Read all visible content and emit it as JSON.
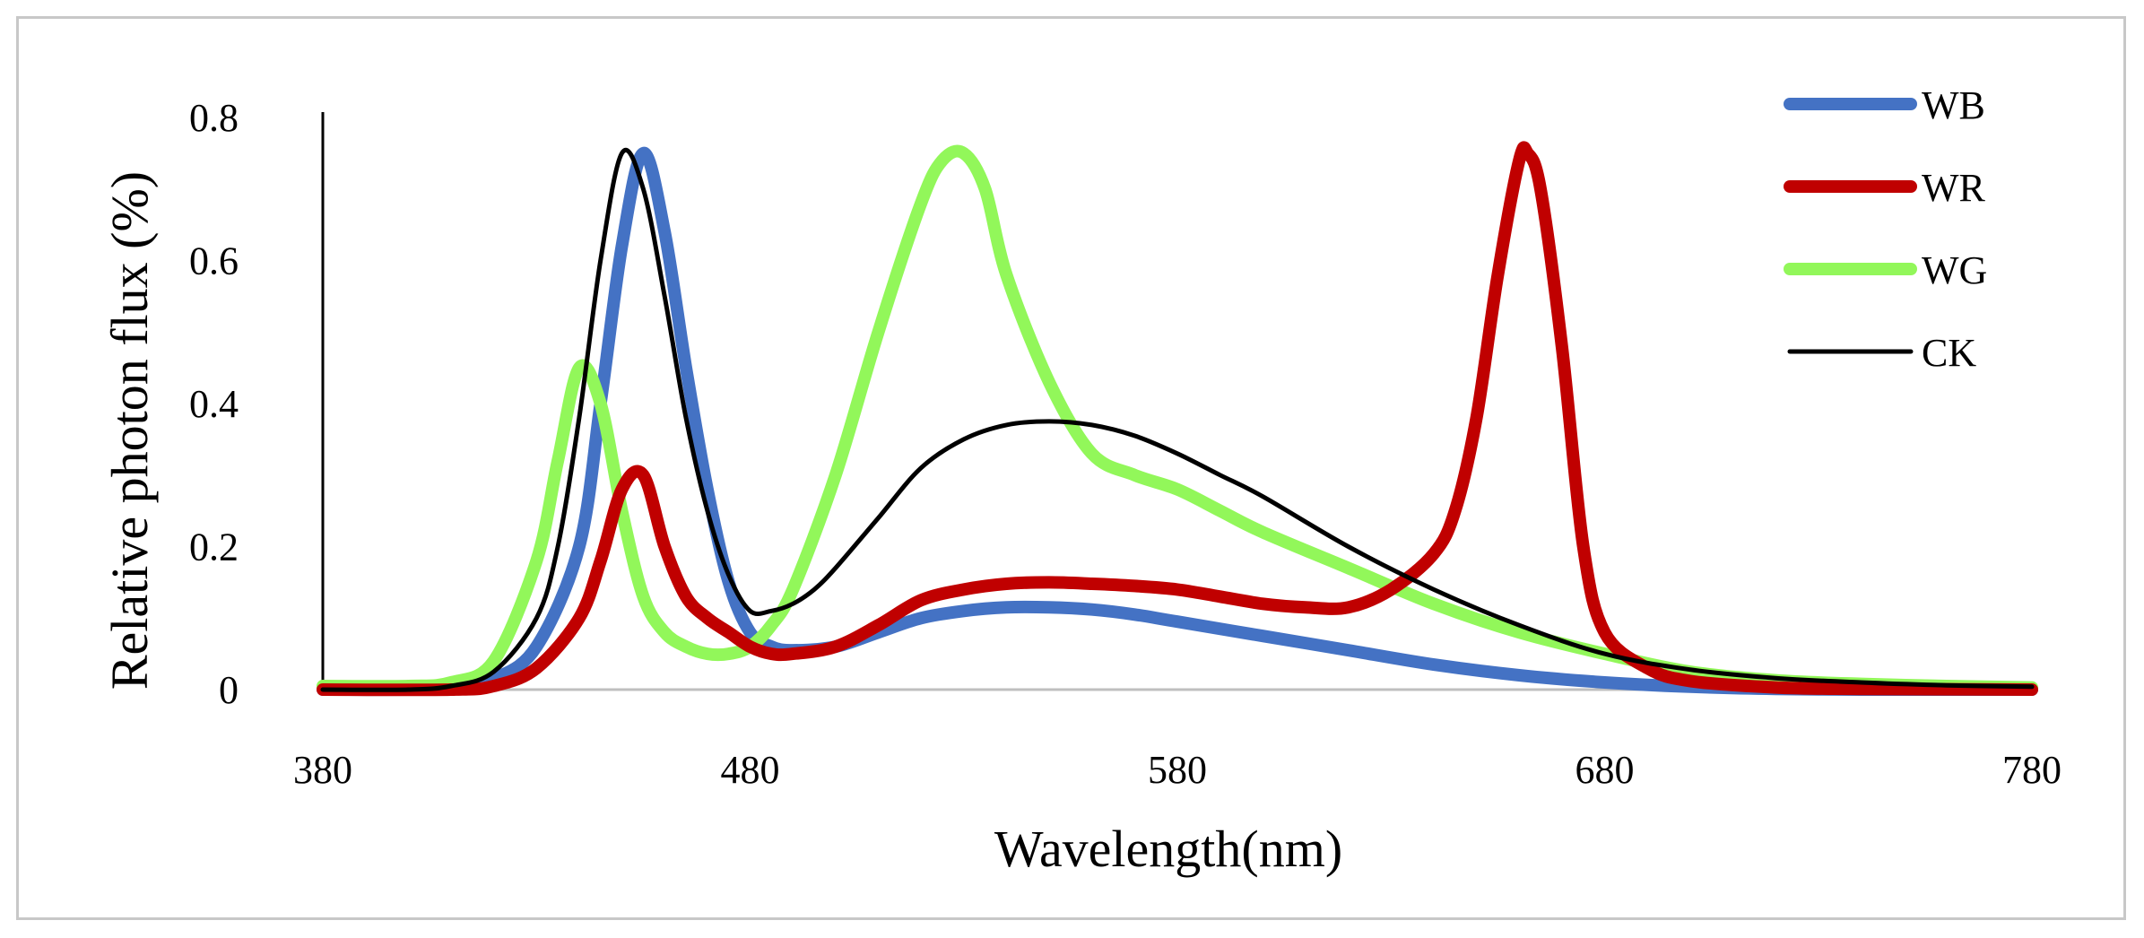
{
  "chart_data": {
    "type": "line",
    "title": "",
    "xlabel": "Wavelength(nm)",
    "ylabel": "Relative photon flux (%)",
    "xlim": [
      380,
      780
    ],
    "ylim": [
      0,
      0.8
    ],
    "xticks": [
      380,
      480,
      580,
      680,
      780
    ],
    "xtick_labels": [
      "380",
      "480",
      "580",
      "680",
      "780"
    ],
    "yticks": [
      0,
      0.2,
      0.4,
      0.6,
      0.8
    ],
    "ytick_labels": [
      "0",
      "0.2",
      "0.4",
      "0.6",
      "0.8"
    ],
    "grid": false,
    "legend": "top-right",
    "series": [
      {
        "name": "WB",
        "color": "#4472C4",
        "x": [
          380,
          400,
          410,
          420,
          430,
          440,
          445,
          450,
          455,
          460,
          465,
          470,
          475,
          480,
          485,
          490,
          500,
          510,
          520,
          530,
          540,
          550,
          560,
          570,
          580,
          600,
          620,
          640,
          660,
          680,
          700,
          720,
          740,
          760,
          780
        ],
        "y": [
          0,
          0,
          0.002,
          0.015,
          0.06,
          0.2,
          0.4,
          0.62,
          0.75,
          0.64,
          0.45,
          0.28,
          0.15,
          0.08,
          0.06,
          0.055,
          0.06,
          0.08,
          0.1,
          0.11,
          0.115,
          0.115,
          0.112,
          0.105,
          0.095,
          0.075,
          0.055,
          0.035,
          0.02,
          0.01,
          0.004,
          0.001,
          0,
          0,
          0
        ]
      },
      {
        "name": "WR",
        "color": "#C00000",
        "x": [
          380,
          410,
          420,
          430,
          440,
          445,
          450,
          455,
          460,
          465,
          470,
          475,
          480,
          485,
          490,
          500,
          510,
          520,
          530,
          540,
          550,
          560,
          570,
          580,
          590,
          600,
          610,
          620,
          630,
          640,
          645,
          650,
          655,
          660,
          662,
          665,
          670,
          675,
          680,
          690,
          700,
          720,
          740,
          780
        ],
        "y": [
          0,
          0,
          0.005,
          0.03,
          0.1,
          0.18,
          0.28,
          0.3,
          0.2,
          0.13,
          0.1,
          0.08,
          0.06,
          0.05,
          0.05,
          0.06,
          0.09,
          0.125,
          0.14,
          0.148,
          0.15,
          0.148,
          0.145,
          0.14,
          0.13,
          0.12,
          0.115,
          0.115,
          0.14,
          0.19,
          0.25,
          0.38,
          0.58,
          0.74,
          0.75,
          0.7,
          0.48,
          0.2,
          0.08,
          0.03,
          0.012,
          0.003,
          0.001,
          0
        ]
      },
      {
        "name": "WG",
        "color": "#92F75A",
        "x": [
          380,
          400,
          410,
          420,
          430,
          435,
          440,
          445,
          450,
          455,
          460,
          465,
          470,
          475,
          480,
          485,
          490,
          500,
          510,
          520,
          525,
          530,
          535,
          540,
          550,
          560,
          570,
          580,
          590,
          600,
          620,
          640,
          660,
          680,
          700,
          720,
          740,
          760,
          780
        ],
        "y": [
          0.005,
          0.005,
          0.01,
          0.04,
          0.18,
          0.32,
          0.45,
          0.4,
          0.25,
          0.13,
          0.08,
          0.06,
          0.05,
          0.05,
          0.06,
          0.09,
          0.14,
          0.3,
          0.5,
          0.68,
          0.74,
          0.75,
          0.7,
          0.58,
          0.43,
          0.33,
          0.3,
          0.28,
          0.25,
          0.22,
          0.17,
          0.12,
          0.08,
          0.05,
          0.025,
          0.013,
          0.008,
          0.005,
          0.003
        ]
      },
      {
        "name": "CK",
        "color": "#000000",
        "x": [
          380,
          400,
          410,
          420,
          430,
          435,
          440,
          445,
          450,
          455,
          460,
          465,
          470,
          475,
          480,
          485,
          490,
          495,
          500,
          510,
          520,
          530,
          540,
          550,
          560,
          570,
          580,
          590,
          600,
          620,
          640,
          660,
          680,
          700,
          720,
          740,
          760,
          780
        ],
        "y": [
          0,
          0,
          0.005,
          0.025,
          0.1,
          0.2,
          0.38,
          0.6,
          0.75,
          0.7,
          0.55,
          0.38,
          0.25,
          0.16,
          0.11,
          0.11,
          0.12,
          0.14,
          0.17,
          0.24,
          0.31,
          0.35,
          0.37,
          0.375,
          0.37,
          0.355,
          0.33,
          0.3,
          0.27,
          0.2,
          0.14,
          0.09,
          0.05,
          0.028,
          0.016,
          0.01,
          0.006,
          0.004
        ]
      }
    ]
  }
}
